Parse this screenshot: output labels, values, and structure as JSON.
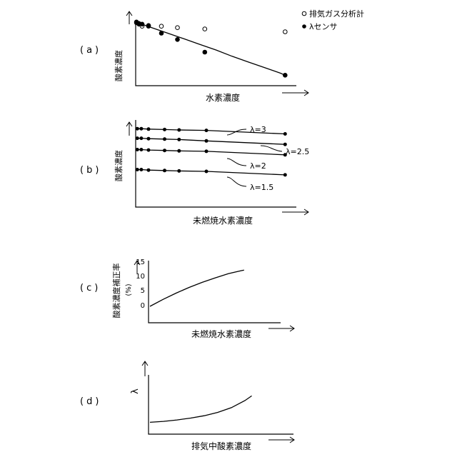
{
  "panels": [
    {
      "id": "a",
      "label": "(a)",
      "xlabel": "水素濃度",
      "ylabel": "酸素濃度",
      "legend": [
        {
          "marker": "open-circle-icon",
          "text": "排気ガス分析計"
        },
        {
          "marker": "filled-circle-icon",
          "text": "λセンサ"
        }
      ]
    },
    {
      "id": "b",
      "label": "(b)",
      "xlabel": "未燃焼水素濃度",
      "ylabel": "酸素濃度",
      "series_labels": [
        "λ=3",
        "λ=2.5",
        "λ=2",
        "λ=1.5"
      ]
    },
    {
      "id": "c",
      "label": "(c)",
      "xlabel": "未燃焼水素濃度",
      "ylabel": "酸素濃度補正率",
      "yunit": "(%)",
      "yticks": [
        "15",
        "10",
        "5",
        "0"
      ]
    },
    {
      "id": "d",
      "label": "(d)",
      "xlabel": "排気中酸素濃度",
      "ylabel": "λ"
    }
  ],
  "chart_data": [
    {
      "type": "scatter",
      "xlabel": "水素濃度",
      "ylabel": "酸素濃度",
      "xlim": [
        0,
        10
      ],
      "ylim": [
        0,
        10
      ],
      "series": [
        {
          "name": "排気ガス分析計",
          "marker": "open-circle",
          "x": [
            0.05,
            0.2,
            0.4,
            0.8,
            1.6,
            2.6,
            4.3,
            9.3
          ],
          "y": [
            9.0,
            8.8,
            8.5,
            8.6,
            8.5,
            8.3,
            8.1,
            7.7
          ]
        },
        {
          "name": "λセンサ",
          "marker": "filled-circle",
          "x": [
            0.05,
            0.2,
            0.4,
            0.8,
            1.6,
            2.6,
            4.3,
            9.3
          ],
          "y": [
            9.1,
            8.9,
            8.8,
            8.5,
            7.5,
            6.6,
            4.8,
            1.5
          ]
        }
      ],
      "fit_curve": {
        "x": [
          0,
          1,
          2,
          3,
          4,
          5,
          6,
          7,
          8,
          9,
          9.3
        ],
        "y": [
          9.1,
          8.3,
          7.5,
          6.7,
          5.9,
          5.1,
          4.2,
          3.4,
          2.6,
          1.8,
          1.5
        ]
      }
    },
    {
      "type": "line",
      "xlabel": "未燃焼水素濃度",
      "ylabel": "酸素濃度",
      "xlim": [
        0,
        10
      ],
      "ylim": [
        0,
        10
      ],
      "x": [
        0.1,
        0.35,
        0.8,
        1.8,
        2.7,
        4.4,
        9.3
      ],
      "series": [
        {
          "name": "λ=3",
          "values": [
            9.0,
            9.0,
            8.95,
            8.9,
            8.85,
            8.8,
            8.4
          ]
        },
        {
          "name": "λ=2.5",
          "values": [
            7.9,
            7.9,
            7.85,
            7.8,
            7.75,
            7.6,
            7.2
          ]
        },
        {
          "name": "λ=2",
          "values": [
            6.6,
            6.6,
            6.55,
            6.5,
            6.45,
            6.4,
            6.0
          ]
        },
        {
          "name": "λ=1.5",
          "values": [
            4.3,
            4.3,
            4.25,
            4.2,
            4.15,
            4.1,
            3.7
          ]
        }
      ]
    },
    {
      "type": "line",
      "xlabel": "未燃焼水素濃度",
      "ylabel": "酸素濃度補正率 (%)",
      "yticks": [
        0,
        5,
        10,
        15
      ],
      "xlim": [
        0,
        10
      ],
      "ylim": [
        0,
        15
      ],
      "series": [
        {
          "x": [
            0,
            1,
            2,
            3,
            4,
            5,
            6,
            7,
            7.2
          ],
          "values": [
            0,
            2.3,
            4.4,
            6.3,
            8.0,
            9.5,
            10.9,
            11.9,
            12.1
          ]
        }
      ]
    },
    {
      "type": "line",
      "xlabel": "排気中酸素濃度",
      "ylabel": "λ",
      "xlim": [
        0,
        10
      ],
      "ylim": [
        0,
        10
      ],
      "series": [
        {
          "x": [
            0,
            1,
            2,
            3,
            4,
            5,
            6,
            7,
            7.5
          ],
          "values": [
            1.0,
            1.2,
            1.5,
            1.9,
            2.4,
            3.1,
            4.1,
            5.6,
            6.6
          ]
        }
      ]
    }
  ]
}
